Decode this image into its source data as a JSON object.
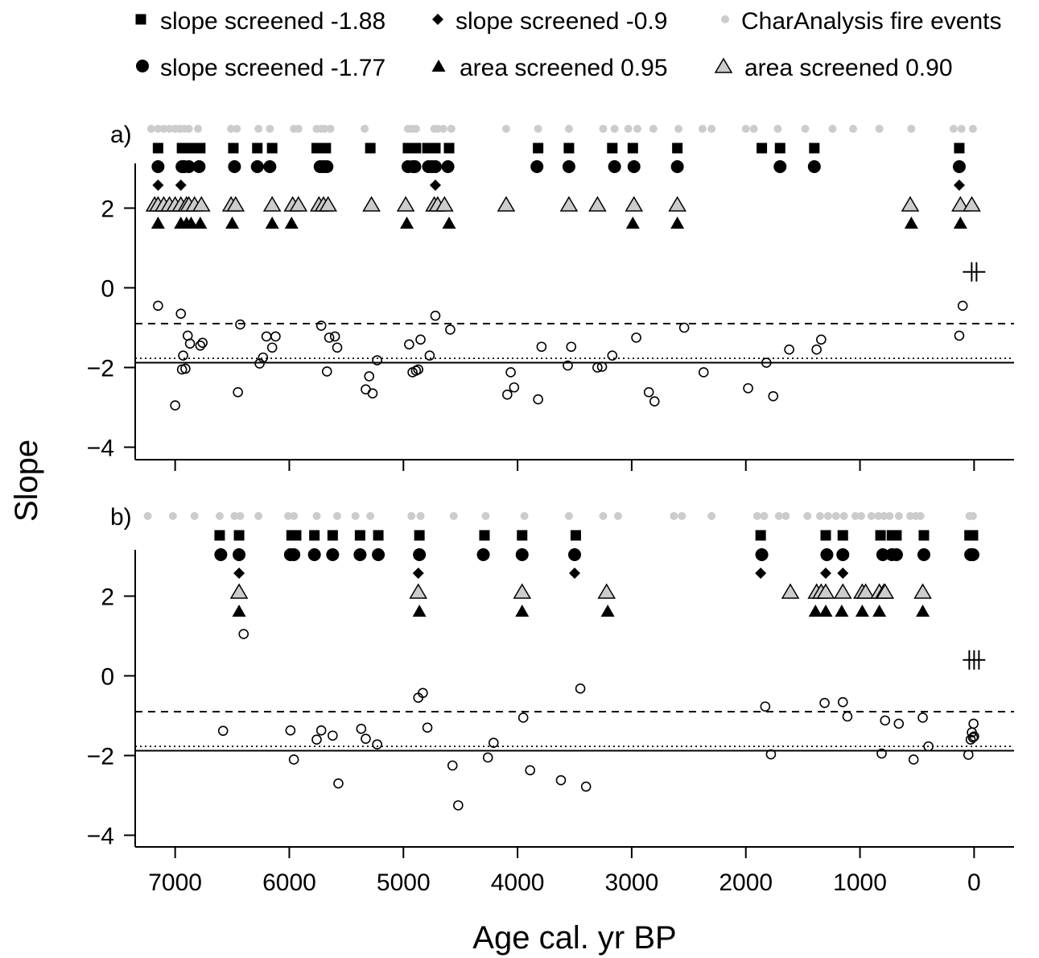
{
  "chart_data": {
    "type": "scatter",
    "xlabel": "Age cal. yr BP",
    "ylabel": "Slope",
    "xlim": [
      7350,
      -350
    ],
    "x_reversed": true,
    "xticks": [
      7000,
      6000,
      5000,
      4000,
      3000,
      2000,
      1000,
      0
    ],
    "xtick_labels": [
      "7000",
      "6000",
      "5000",
      "4000",
      "3000",
      "2000",
      "1000",
      "0"
    ],
    "ylim": [
      -4.3,
      3.1
    ],
    "yticks": [
      -4,
      -2,
      0,
      2
    ],
    "ytick_labels": [
      "−4",
      "−2",
      "0",
      "2"
    ],
    "legend": {
      "placement": "top",
      "entries": [
        {
          "label": "slope screened -1.88",
          "marker": "square",
          "color": "#000000"
        },
        {
          "label": "slope screened -0.9",
          "marker": "diamond",
          "color": "#000000"
        },
        {
          "label": "CharAnalysis fire events",
          "marker": "dot",
          "color": "#cccccc"
        },
        {
          "label": "slope screened -1.77",
          "marker": "circle",
          "color": "#000000"
        },
        {
          "label": "area screened 0.95",
          "marker": "triangle",
          "color": "#000000"
        },
        {
          "label": "area screened 0.90",
          "marker": "triangle-open",
          "color": "#cccccc"
        }
      ]
    },
    "reference_lines": [
      {
        "y": -1.88,
        "style": "solid"
      },
      {
        "y": -0.9,
        "style": "dashed"
      },
      {
        "y": -1.77,
        "style": "dotted"
      }
    ],
    "panels": [
      {
        "label": "a)",
        "slopes": [
          [
            7150,
            -0.45
          ],
          [
            7000,
            -2.95
          ],
          [
            6950,
            -0.65
          ],
          [
            6940,
            -2.05
          ],
          [
            6930,
            -1.7
          ],
          [
            6910,
            -2.03
          ],
          [
            6890,
            -1.2
          ],
          [
            6870,
            -1.4
          ],
          [
            6780,
            -1.45
          ],
          [
            6760,
            -1.38
          ],
          [
            6450,
            -2.62
          ],
          [
            6430,
            -0.92
          ],
          [
            6260,
            -1.9
          ],
          [
            6230,
            -1.75
          ],
          [
            6200,
            -1.22
          ],
          [
            6150,
            -1.5
          ],
          [
            6120,
            -1.22
          ],
          [
            5720,
            -0.95
          ],
          [
            5670,
            -2.1
          ],
          [
            5650,
            -1.25
          ],
          [
            5600,
            -1.22
          ],
          [
            5580,
            -1.5
          ],
          [
            5330,
            -2.55
          ],
          [
            5300,
            -2.22
          ],
          [
            5270,
            -2.65
          ],
          [
            5230,
            -1.82
          ],
          [
            4950,
            -1.42
          ],
          [
            4920,
            -2.12
          ],
          [
            4890,
            -2.08
          ],
          [
            4870,
            -2.05
          ],
          [
            4850,
            -1.3
          ],
          [
            4770,
            -1.7
          ],
          [
            4720,
            -0.7
          ],
          [
            4590,
            -1.05
          ],
          [
            4090,
            -2.68
          ],
          [
            4060,
            -2.12
          ],
          [
            4030,
            -2.5
          ],
          [
            3820,
            -2.8
          ],
          [
            3790,
            -1.48
          ],
          [
            3560,
            -1.95
          ],
          [
            3530,
            -1.48
          ],
          [
            3300,
            -2.0
          ],
          [
            3260,
            -1.98
          ],
          [
            3170,
            -1.7
          ],
          [
            2960,
            -1.25
          ],
          [
            2850,
            -2.62
          ],
          [
            2800,
            -2.85
          ],
          [
            2540,
            -1.0
          ],
          [
            2370,
            -2.12
          ],
          [
            1980,
            -2.52
          ],
          [
            1820,
            -1.88
          ],
          [
            1760,
            -2.72
          ],
          [
            1620,
            -1.55
          ],
          [
            1380,
            -1.55
          ],
          [
            1340,
            -1.3
          ],
          [
            130,
            -1.2
          ],
          [
            100,
            -0.45
          ]
        ],
        "fire_events": [
          7210,
          7150,
          7100,
          7050,
          7000,
          6960,
          6920,
          6880,
          6800,
          6510,
          6460,
          6270,
          6170,
          5960,
          5920,
          5760,
          5720,
          5690,
          5640,
          5340,
          4960,
          4920,
          4890,
          4730,
          4700,
          4650,
          4580,
          4100,
          3820,
          3550,
          3250,
          3150,
          3030,
          2950,
          2810,
          2590,
          2380,
          2300,
          2000,
          1930,
          1720,
          1480,
          1240,
          1060,
          830,
          550,
          180,
          110,
          10
        ],
        "rows": [
          {
            "marker": "square",
            "x": [
              7150,
              6940,
              6890,
              6840,
              6780,
              6490,
              6280,
              6150,
              5760,
              5720,
              5680,
              5290,
              4960,
              4920,
              4890,
              4790,
              4720,
              4600,
              3820,
              3550,
              3170,
              2990,
              2600,
              1860,
              1700,
              1400,
              130
            ]
          },
          {
            "marker": "circle",
            "x": [
              7150,
              6940,
              6920,
              6880,
              6790,
              6480,
              6280,
              6170,
              5730,
              5700,
              5670,
              4960,
              4920,
              4900,
              4780,
              4750,
              4720,
              4610,
              3830,
              3550,
              3150,
              2980,
              2600,
              1700,
              1400,
              130
            ]
          },
          {
            "marker": "diamond",
            "x": [
              7150,
              6950,
              4720,
              130
            ]
          },
          {
            "marker": "triangle-open",
            "x": [
              7180,
              7150,
              7100,
              7050,
              7000,
              6950,
              6900,
              6880,
              6830,
              6770,
              6510,
              6470,
              6150,
              5970,
              5920,
              5740,
              5700,
              5660,
              5280,
              4980,
              4730,
              4700,
              4640,
              4100,
              3550,
              3300,
              2980,
              2600,
              560,
              120,
              20
            ]
          },
          {
            "marker": "triangle",
            "x": [
              7150,
              6950,
              6900,
              6860,
              6780,
              6500,
              6150,
              5980,
              4970,
              4600,
              2990,
              2600,
              550,
              120
            ]
          }
        ],
        "cross_marks": [
          {
            "x": 0,
            "y": 0.4,
            "count": 2
          }
        ]
      },
      {
        "label": "b)",
        "slopes": [
          [
            6580,
            -1.38
          ],
          [
            6400,
            1.05
          ],
          [
            5990,
            -1.37
          ],
          [
            5960,
            -2.1
          ],
          [
            5760,
            -1.6
          ],
          [
            5720,
            -1.37
          ],
          [
            5620,
            -1.5
          ],
          [
            5570,
            -2.7
          ],
          [
            5370,
            -1.33
          ],
          [
            5330,
            -1.58
          ],
          [
            5230,
            -1.72
          ],
          [
            4870,
            -0.55
          ],
          [
            4830,
            -0.43
          ],
          [
            4790,
            -1.3
          ],
          [
            4570,
            -2.25
          ],
          [
            4520,
            -3.25
          ],
          [
            4260,
            -2.05
          ],
          [
            4210,
            -1.68
          ],
          [
            3950,
            -1.05
          ],
          [
            3890,
            -2.37
          ],
          [
            3620,
            -2.62
          ],
          [
            3450,
            -0.32
          ],
          [
            3400,
            -2.78
          ],
          [
            1830,
            -0.77
          ],
          [
            1780,
            -1.97
          ],
          [
            1310,
            -0.68
          ],
          [
            1150,
            -0.66
          ],
          [
            1110,
            -1.02
          ],
          [
            810,
            -1.95
          ],
          [
            780,
            -1.12
          ],
          [
            660,
            -1.2
          ],
          [
            530,
            -2.1
          ],
          [
            450,
            -1.05
          ],
          [
            400,
            -1.77
          ],
          [
            50,
            -1.98
          ],
          [
            30,
            -1.6
          ],
          [
            20,
            -1.42
          ],
          [
            10,
            -1.55
          ],
          [
            5,
            -1.2
          ],
          [
            0,
            -1.52
          ]
        ],
        "fire_events": [
          7240,
          7020,
          6830,
          6610,
          6480,
          6430,
          6270,
          6010,
          5960,
          5760,
          5580,
          5420,
          5290,
          4930,
          4850,
          4560,
          4280,
          3940,
          3550,
          3250,
          3120,
          2630,
          2560,
          2300,
          1900,
          1840,
          1710,
          1650,
          1460,
          1350,
          1280,
          1210,
          1140,
          1040,
          990,
          900,
          840,
          790,
          740,
          660,
          560,
          510,
          470,
          40,
          10
        ],
        "rows": [
          {
            "marker": "square",
            "x": [
              6610,
              6440,
              5980,
              5940,
              5780,
              5620,
              5380,
              5220,
              4860,
              4290,
              3960,
              3490,
              1870,
              1300,
              1150,
              820,
              720,
              680,
              440,
              40,
              10
            ]
          },
          {
            "marker": "circle",
            "x": [
              6600,
              6440,
              5990,
              5960,
              5780,
              5620,
              5380,
              5220,
              4860,
              4300,
              3960,
              3500,
              1860,
              1290,
              1150,
              800,
              720,
              680,
              440,
              30,
              10
            ]
          },
          {
            "marker": "diamond",
            "x": [
              6440,
              4870,
              3500,
              1870,
              1300,
              1150
            ]
          },
          {
            "marker": "triangle-open",
            "x": [
              6440,
              4870,
              3960,
              3220,
              1610,
              1380,
              1340,
              1300,
              1150,
              980,
              950,
              830,
              790,
              780,
              450
            ]
          },
          {
            "marker": "triangle",
            "x": [
              6440,
              4860,
              3960,
              3210,
              1390,
              1300,
              1160,
              980,
              830,
              450
            ]
          }
        ],
        "cross_marks": [
          {
            "x": 0,
            "y": 0.4,
            "count": 3
          }
        ]
      }
    ]
  }
}
